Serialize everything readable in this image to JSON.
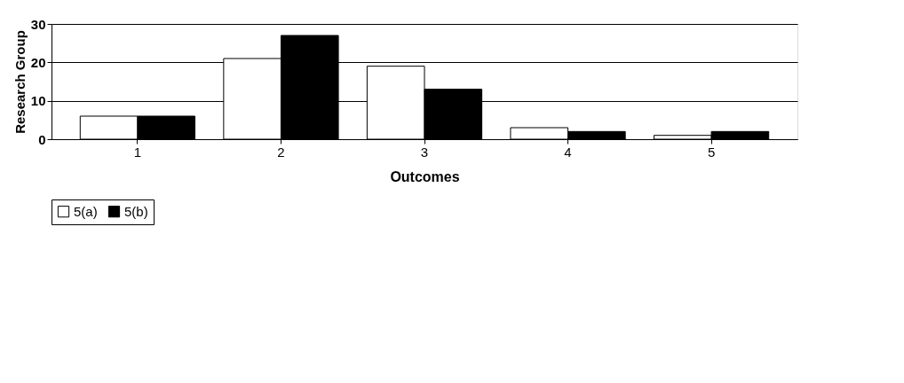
{
  "chart_data": {
    "type": "bar",
    "xlabel": "Outcomes",
    "ylabel": "Research Group",
    "categories": [
      "1",
      "2",
      "3",
      "4",
      "5"
    ],
    "series": [
      {
        "name": "5(a)",
        "color": "#ffffff",
        "values": [
          6,
          21,
          19,
          3,
          1
        ]
      },
      {
        "name": "5(b)",
        "color": "#000000",
        "values": [
          6,
          27,
          13,
          2,
          2
        ]
      }
    ],
    "ylim": [
      0,
      30
    ],
    "yticks": [
      0,
      10,
      20,
      30
    ],
    "grid": "y",
    "legend": "bottom"
  }
}
